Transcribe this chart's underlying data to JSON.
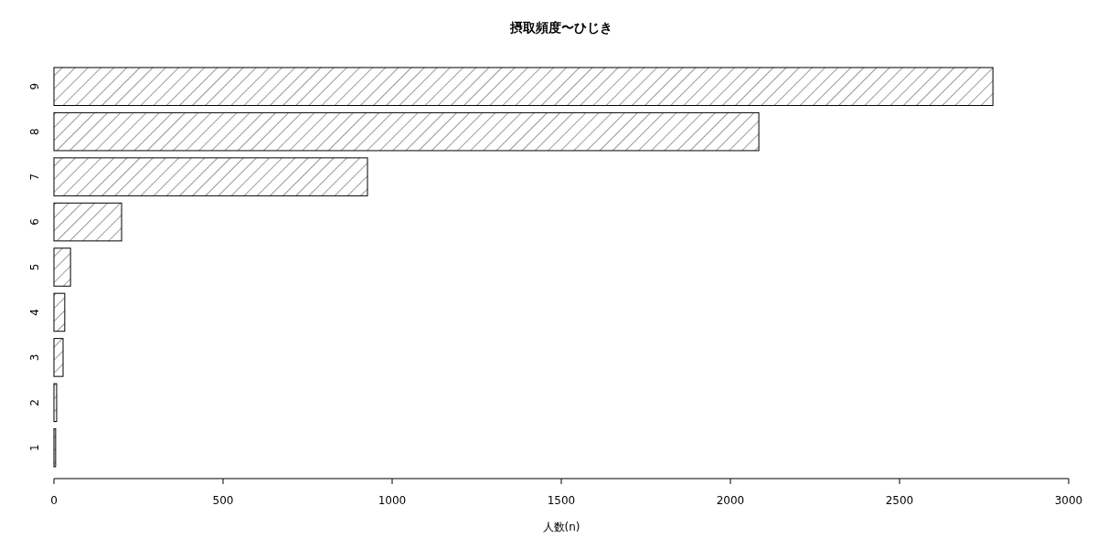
{
  "chart_data": {
    "type": "bar",
    "orientation": "horizontal",
    "title": "摂取頻度〜ひじき",
    "xlabel": "人数(n)",
    "categories": [
      "9",
      "8",
      "7",
      "6",
      "5",
      "4",
      "3",
      "2",
      "1"
    ],
    "values": [
      2776,
      2084,
      927,
      200,
      49,
      32,
      27,
      8,
      5
    ],
    "xlim": [
      0,
      3000
    ],
    "xticks": [
      0,
      500,
      1000,
      1500,
      2000,
      2500,
      3000
    ],
    "grid": false
  }
}
